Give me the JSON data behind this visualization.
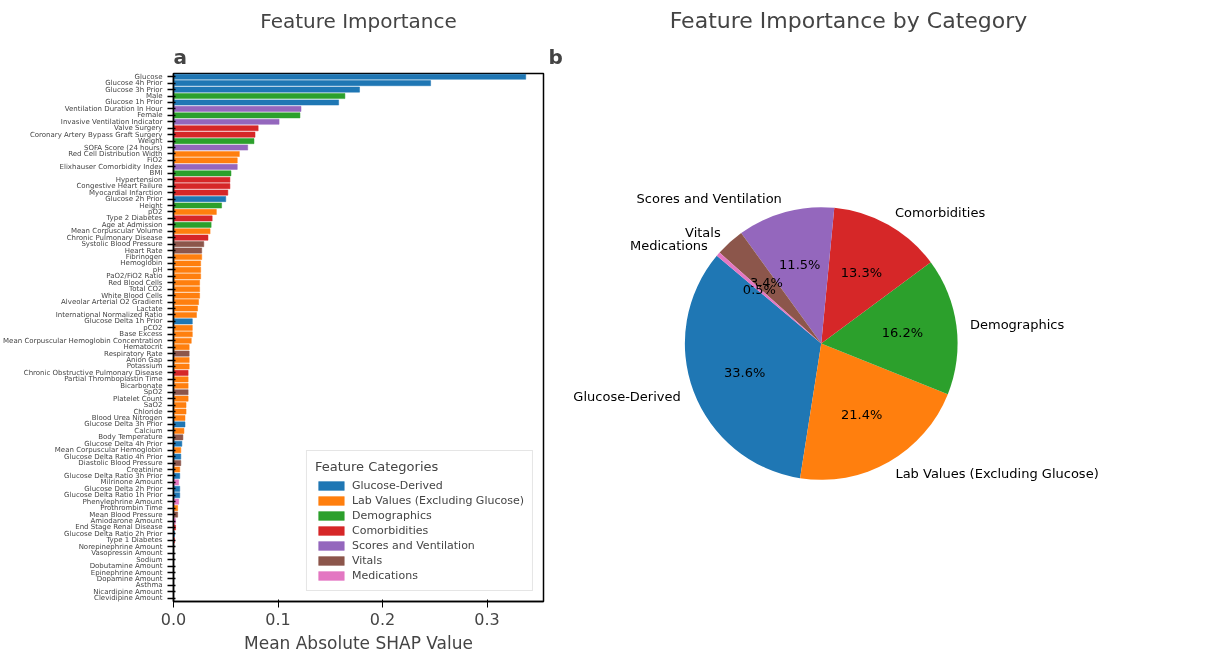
{
  "chart_data": [
    {
      "type": "bar",
      "orientation": "horizontal",
      "title": "Feature Importance",
      "xlabel": "Mean Absolute SHAP Value",
      "annotations": [
        "a"
      ],
      "grid": false,
      "legend": "bottom right",
      "legend_title": "Feature Categories",
      "xlim": [
        0,
        0.354
      ],
      "xticks": [
        {
          "value": 0,
          "label": "0.0"
        },
        0.1,
        0.2,
        0.3
      ],
      "categories": [
        "Glucose",
        "Glucose 4h Prior",
        "Glucose 3h Prior",
        "Male",
        "Glucose 1h Prior",
        "Ventilation Duration In Hour",
        "Female",
        "Invasive Ventilation Indicator",
        "Valve Surgery",
        "Coronary Artery Bypass Graft Surgery",
        "Weight",
        "SOFA Score (24 hours)",
        "Red Cell Distribution Width",
        "FiO2",
        "Elixhauser Comorbidity Index",
        "BMI",
        "Hypertension",
        "Congestive Heart Failure",
        "Myocardial Infarction",
        "Glucose 2h Prior",
        "Height",
        "pO2",
        "Type 2 Diabetes",
        "Age at Admission",
        "Mean Corpuscular Volume",
        "Chronic Pulmonary Disease",
        "Systolic Blood Pressure",
        "Heart Rate",
        "Fibrinogen",
        "Hemoglobin",
        "pH",
        "PaO2/FiO2 Ratio",
        "Red Blood Cells",
        "Total CO2",
        "White Blood Cells",
        "Alveolar Arterial O2 Gradient",
        "Lactate",
        "International Normalized Ratio",
        "Glucose Delta 1h Prior",
        "pCO2",
        "Base Excess",
        "Mean Corpuscular Hemoglobin Concentration",
        "Hematocrit",
        "Respiratory Rate",
        "Anion Gap",
        "Potassium",
        "Chronic Obstructive Pulmonary Disease",
        "Partial Thromboplastin Time",
        "Bicarbonate",
        "SpO2",
        "Platelet Count",
        "SaO2",
        "Chloride",
        "Blood Urea Nitrogen",
        "Glucose Delta 3h Prior",
        "Calcium",
        "Body Temperature",
        "Glucose Delta 4h Prior",
        "Mean Corpuscular Hemoglobin",
        "Glucose Delta Ratio 4h Prior",
        "Diastolic Blood Pressure",
        "Creatinine",
        "Glucose Delta Ratio 3h Prior",
        "Milrinone Amount",
        "Glucose Delta 2h Prior",
        "Glucose Delta Ratio 1h Prior",
        "Phenylephrine Amount",
        "Prothrombin Time",
        "Mean Blood Pressure",
        "Amiodarone Amount",
        "End Stage Renal Disease",
        "Glucose Delta Ratio 2h Prior",
        "Type 1 Diabetes",
        "Norepinephrine Amount",
        "Vasopressin Amount",
        "Sodium",
        "Dobutamine Amount",
        "Epinephrine Amount",
        "Dopamine Amount",
        "Asthma",
        "Nicardipine Amount",
        "Clevidipine Amount"
      ],
      "series": [
        {
          "name": "Glucose-Derived",
          "color": "#1f77b4",
          "values": [
            0.337,
            0.246,
            0.178,
            null,
            0.158,
            null,
            null,
            null,
            null,
            null,
            null,
            null,
            null,
            null,
            null,
            null,
            null,
            null,
            null,
            0.05,
            null,
            null,
            null,
            null,
            null,
            null,
            null,
            null,
            null,
            null,
            null,
            null,
            null,
            null,
            null,
            null,
            null,
            null,
            0.018,
            null,
            null,
            null,
            null,
            null,
            null,
            null,
            null,
            null,
            null,
            null,
            null,
            null,
            null,
            null,
            0.011,
            null,
            null,
            0.008,
            null,
            0.007,
            null,
            null,
            0.006,
            null,
            0.006,
            0.006,
            null,
            null,
            null,
            null,
            null,
            0.001,
            null,
            null,
            null,
            null,
            null,
            null,
            null,
            null,
            null,
            null
          ]
        },
        {
          "name": "Lab Values (Excluding Glucose)",
          "color": "#ff7f0e",
          "values": [
            null,
            null,
            null,
            null,
            null,
            null,
            null,
            null,
            null,
            null,
            null,
            null,
            0.063,
            0.061,
            null,
            null,
            null,
            null,
            null,
            null,
            null,
            0.041,
            null,
            null,
            0.035,
            null,
            null,
            null,
            0.027,
            0.026,
            0.026,
            0.026,
            0.025,
            0.025,
            0.025,
            0.024,
            0.023,
            0.022,
            null,
            0.018,
            0.018,
            0.017,
            0.015,
            null,
            0.015,
            0.015,
            null,
            0.014,
            0.014,
            null,
            0.014,
            0.012,
            0.012,
            0.011,
            null,
            0.01,
            null,
            null,
            0.007,
            null,
            null,
            0.006,
            null,
            null,
            null,
            null,
            null,
            0.004,
            null,
            null,
            null,
            null,
            null,
            null,
            null,
            0,
            null,
            null,
            null,
            null,
            null,
            null
          ]
        },
        {
          "name": "Demographics",
          "color": "#2ca02c",
          "values": [
            null,
            null,
            null,
            0.164,
            null,
            null,
            0.121,
            null,
            null,
            null,
            0.077,
            null,
            null,
            null,
            null,
            0.055,
            null,
            null,
            null,
            null,
            0.046,
            null,
            null,
            0.036,
            null,
            null,
            null,
            null,
            null,
            null,
            null,
            null,
            null,
            null,
            null,
            null,
            null,
            null,
            null,
            null,
            null,
            null,
            null,
            null,
            null,
            null,
            null,
            null,
            null,
            null,
            null,
            null,
            null,
            null,
            null,
            null,
            null,
            null,
            null,
            null,
            null,
            null,
            null,
            null,
            null,
            null,
            null,
            null,
            null,
            null,
            null,
            null,
            null,
            null,
            null,
            null,
            null,
            null,
            null,
            null,
            null,
            null
          ]
        },
        {
          "name": "Comorbidities",
          "color": "#d62728",
          "values": [
            null,
            null,
            null,
            null,
            null,
            null,
            null,
            null,
            0.081,
            0.078,
            null,
            null,
            null,
            null,
            null,
            null,
            0.054,
            0.054,
            0.052,
            null,
            null,
            null,
            0.037,
            null,
            null,
            0.033,
            null,
            null,
            null,
            null,
            null,
            null,
            null,
            null,
            null,
            null,
            null,
            null,
            null,
            null,
            null,
            null,
            null,
            null,
            null,
            null,
            0.014,
            null,
            null,
            null,
            null,
            null,
            null,
            null,
            null,
            null,
            null,
            null,
            null,
            null,
            null,
            null,
            null,
            null,
            null,
            null,
            null,
            null,
            null,
            null,
            0.002,
            null,
            0.001,
            null,
            null,
            null,
            null,
            null,
            null,
            0,
            null,
            null
          ]
        },
        {
          "name": "Scores and Ventilation",
          "color": "#9467bd",
          "values": [
            null,
            null,
            null,
            null,
            null,
            0.122,
            null,
            0.101,
            null,
            null,
            null,
            0.071,
            null,
            null,
            0.061,
            null,
            null,
            null,
            null,
            null,
            null,
            null,
            null,
            null,
            null,
            null,
            null,
            null,
            null,
            null,
            null,
            null,
            null,
            null,
            null,
            null,
            null,
            null,
            null,
            null,
            null,
            null,
            null,
            null,
            null,
            null,
            null,
            null,
            null,
            null,
            null,
            null,
            null,
            null,
            null,
            null,
            null,
            null,
            null,
            null,
            null,
            null,
            null,
            null,
            null,
            null,
            null,
            null,
            null,
            null,
            null,
            null,
            null,
            null,
            null,
            null,
            null,
            null,
            null,
            null,
            null,
            null
          ]
        },
        {
          "name": "Vitals",
          "color": "#8c564b",
          "values": [
            null,
            null,
            null,
            null,
            null,
            null,
            null,
            null,
            null,
            null,
            null,
            null,
            null,
            null,
            null,
            null,
            null,
            null,
            null,
            null,
            null,
            null,
            null,
            null,
            null,
            null,
            0.029,
            0.027,
            null,
            null,
            null,
            null,
            null,
            null,
            null,
            null,
            null,
            null,
            null,
            null,
            null,
            null,
            null,
            0.015,
            null,
            null,
            null,
            null,
            null,
            0.014,
            null,
            null,
            null,
            null,
            null,
            null,
            0.009,
            null,
            null,
            null,
            0.007,
            null,
            null,
            null,
            null,
            null,
            null,
            null,
            0.004,
            null,
            null,
            null,
            null,
            null,
            null,
            null,
            null,
            null,
            null,
            null,
            null,
            null
          ]
        },
        {
          "name": "Medications",
          "color": "#e377c2",
          "values": [
            null,
            null,
            null,
            null,
            null,
            null,
            null,
            null,
            null,
            null,
            null,
            null,
            null,
            null,
            null,
            null,
            null,
            null,
            null,
            null,
            null,
            null,
            null,
            null,
            null,
            null,
            null,
            null,
            null,
            null,
            null,
            null,
            null,
            null,
            null,
            null,
            null,
            null,
            null,
            null,
            null,
            null,
            null,
            null,
            null,
            null,
            null,
            null,
            null,
            null,
            null,
            null,
            null,
            null,
            null,
            null,
            null,
            null,
            null,
            null,
            null,
            null,
            null,
            0.005,
            null,
            null,
            0.005,
            null,
            null,
            0.002,
            null,
            null,
            null,
            0,
            0,
            null,
            0,
            0,
            0,
            null,
            0,
            0
          ]
        }
      ]
    },
    {
      "type": "pie",
      "title": "Feature Importance by Category",
      "annotations": [
        "b"
      ],
      "categories": [
        "Glucose-Derived",
        "Lab Values (Excluding Glucose)",
        "Demographics",
        "Comorbidities",
        "Scores and Ventilation",
        "Vitals",
        "Medications"
      ],
      "values": [
        33.6,
        21.4,
        16.2,
        13.3,
        11.5,
        3.4,
        0.5
      ],
      "value_labels": [
        "33.6%",
        "21.4%",
        "16.2%",
        "13.3%",
        "11.5%",
        "3.4%",
        "0.5%"
      ],
      "colors": [
        "#1f77b4",
        "#ff7f0e",
        "#2ca02c",
        "#d62728",
        "#9467bd",
        "#8c564b",
        "#e377c2"
      ]
    }
  ]
}
